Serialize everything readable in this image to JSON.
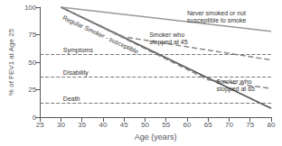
{
  "chart_data": {
    "type": "line",
    "xlabel": "Age (years)",
    "ylabel": "% of FEV1 at Age 25",
    "xlim": [
      25,
      80
    ],
    "ylim": [
      0,
      100
    ],
    "xticks": [
      25,
      30,
      35,
      40,
      45,
      50,
      55,
      60,
      65,
      70,
      75,
      80
    ],
    "yticks": [
      0,
      25,
      50,
      75,
      100
    ],
    "grid": false,
    "series": [
      {
        "x": [
          30,
          80
        ],
        "values": [
          100,
          78
        ],
        "color": "#999999",
        "line_style": "solid"
      },
      {
        "x": [
          30,
          80
        ],
        "values": [
          100,
          8
        ],
        "color": "#555555",
        "line_style": "solid"
      },
      {
        "x": [
          30,
          45,
          80
        ],
        "values": [
          100,
          73,
          52
        ],
        "color": "#888888",
        "line_style": "dashed"
      },
      {
        "x": [
          30,
          65,
          80
        ],
        "values": [
          100,
          34,
          26
        ],
        "color": "#888888",
        "line_style": "dashed"
      }
    ],
    "hlines": [
      {
        "y": 57,
        "label": "Symptoms",
        "x": 30.5,
        "color": "#777777",
        "line_style": "dashed"
      },
      {
        "y": 37,
        "label": "Disability",
        "x": 30.5,
        "color": "#777777",
        "line_style": "dashed"
      },
      {
        "y": 13,
        "label": "Death",
        "x": 30.5,
        "color": "#777777",
        "line_style": "dashed"
      }
    ],
    "annotations": [
      {
        "text": "Never smoked or not\nsusceptible to smoke",
        "x": 60,
        "y": 91
      },
      {
        "text": "Regular Smoker - susceptible",
        "x": 30.5,
        "y": 91
      },
      {
        "text": "Smoker who\nstopped at 45",
        "x": 51,
        "y": 72
      },
      {
        "text": "Smoker who\nstopped at 65",
        "x": 67,
        "y": 29
      }
    ]
  }
}
